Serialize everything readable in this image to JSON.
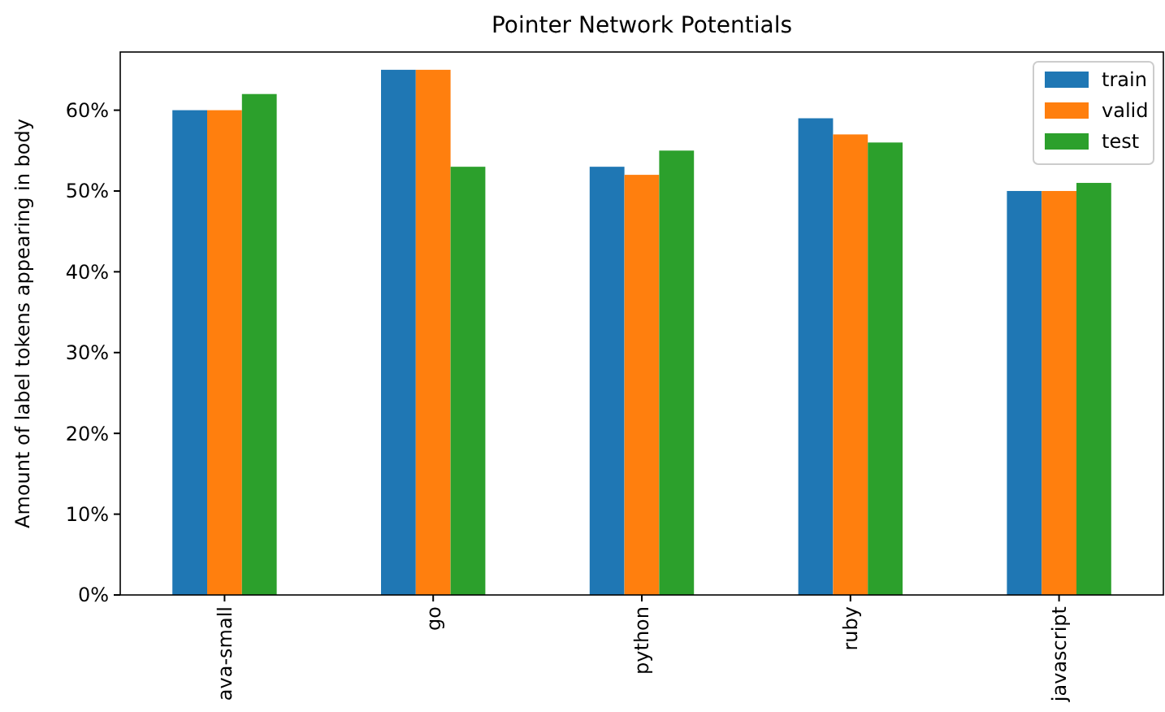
{
  "chart_data": {
    "type": "bar",
    "title": "Pointer Network Potentials",
    "ylabel": "Amount of label tokens appearing in body",
    "categories": [
      "ava-small",
      "go",
      "python",
      "ruby",
      "javascript"
    ],
    "series": [
      {
        "name": "train",
        "color": "#1f77b4",
        "values": [
          60,
          65,
          53,
          59,
          50
        ]
      },
      {
        "name": "valid",
        "color": "#ff7f0e",
        "values": [
          60,
          65,
          52,
          57,
          50
        ]
      },
      {
        "name": "test",
        "color": "#2ca02c",
        "values": [
          62,
          53,
          55,
          56,
          51
        ]
      }
    ],
    "ylim": [
      0,
      67.2
    ],
    "yticks": [
      {
        "value": 0,
        "label": "0%"
      },
      {
        "value": 10,
        "label": "10%"
      },
      {
        "value": 20,
        "label": "20%"
      },
      {
        "value": 30,
        "label": "30%"
      },
      {
        "value": 40,
        "label": "40%"
      },
      {
        "value": 50,
        "label": "50%"
      },
      {
        "value": 60,
        "label": "60%"
      }
    ],
    "legend": "top right",
    "grid": false
  }
}
